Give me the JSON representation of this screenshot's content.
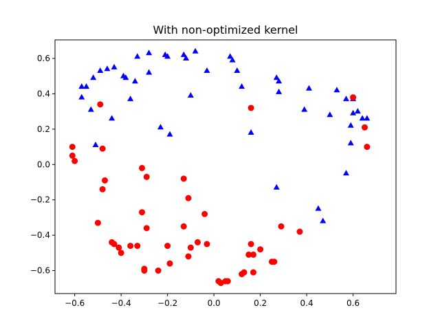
{
  "chart_data": {
    "type": "scatter",
    "title": "With non-optimized kernel",
    "xlabel": "",
    "ylabel": "",
    "xlim": [
      -0.685,
      0.785
    ],
    "ylim": [
      -0.73,
      0.705
    ],
    "xticks": [
      -0.6,
      -0.4,
      -0.2,
      0.0,
      0.2,
      0.4,
      0.6
    ],
    "xtick_labels": [
      "−0.6",
      "−0.4",
      "−0.2",
      "0.0",
      "0.2",
      "0.4",
      "0.6"
    ],
    "yticks": [
      -0.6,
      -0.4,
      -0.2,
      0.0,
      0.2,
      0.4,
      0.6
    ],
    "ytick_labels": [
      "−0.6",
      "−0.4",
      "−0.2",
      "0.0",
      "0.2",
      "0.4",
      "0.6"
    ],
    "grid": false,
    "series": [
      {
        "marker": "triangle",
        "color": "#0000ff",
        "points": [
          [
            -0.57,
            0.44
          ],
          [
            -0.55,
            0.44
          ],
          [
            -0.57,
            0.38
          ],
          [
            -0.53,
            0.31
          ],
          [
            -0.52,
            0.49
          ],
          [
            -0.49,
            0.53
          ],
          [
            -0.46,
            0.54
          ],
          [
            -0.43,
            0.55
          ],
          [
            -0.51,
            0.11
          ],
          [
            -0.44,
            0.26
          ],
          [
            -0.39,
            0.5
          ],
          [
            -0.38,
            0.49
          ],
          [
            -0.36,
            0.37
          ],
          [
            -0.34,
            0.47
          ],
          [
            -0.33,
            0.61
          ],
          [
            -0.28,
            0.63
          ],
          [
            -0.28,
            0.52
          ],
          [
            -0.23,
            0.21
          ],
          [
            -0.21,
            0.62
          ],
          [
            -0.2,
            0.61
          ],
          [
            -0.19,
            0.17
          ],
          [
            -0.13,
            0.62
          ],
          [
            -0.12,
            0.6
          ],
          [
            -0.1,
            0.39
          ],
          [
            -0.08,
            0.64
          ],
          [
            -0.03,
            0.53
          ],
          [
            0.07,
            0.61
          ],
          [
            0.08,
            0.59
          ],
          [
            0.1,
            0.53
          ],
          [
            0.12,
            0.44
          ],
          [
            0.16,
            0.18
          ],
          [
            0.27,
            0.49
          ],
          [
            0.28,
            0.47
          ],
          [
            0.28,
            0.41
          ],
          [
            0.27,
            -0.13
          ],
          [
            0.39,
            0.31
          ],
          [
            0.41,
            0.43
          ],
          [
            0.45,
            -0.25
          ],
          [
            0.47,
            -0.32
          ],
          [
            0.5,
            0.28
          ],
          [
            0.53,
            0.42
          ],
          [
            0.57,
            0.37
          ],
          [
            0.57,
            -0.05
          ],
          [
            0.59,
            0.22
          ],
          [
            0.59,
            0.12
          ],
          [
            0.6,
            0.29
          ],
          [
            0.6,
            0.37
          ],
          [
            0.62,
            0.3
          ],
          [
            0.64,
            0.26
          ],
          [
            0.66,
            0.26
          ]
        ]
      },
      {
        "marker": "circle",
        "color": "#ff0000",
        "points": [
          [
            -0.61,
            0.1
          ],
          [
            -0.61,
            0.05
          ],
          [
            -0.6,
            0.02
          ],
          [
            -0.5,
            -0.33
          ],
          [
            -0.49,
            0.34
          ],
          [
            -0.48,
            0.09
          ],
          [
            -0.48,
            -0.14
          ],
          [
            -0.47,
            -0.09
          ],
          [
            -0.44,
            -0.44
          ],
          [
            -0.43,
            -0.45
          ],
          [
            -0.41,
            -0.47
          ],
          [
            -0.4,
            -0.5
          ],
          [
            -0.36,
            -0.46
          ],
          [
            -0.33,
            -0.46
          ],
          [
            -0.31,
            -0.02
          ],
          [
            -0.31,
            -0.27
          ],
          [
            -0.3,
            -0.59
          ],
          [
            -0.3,
            -0.6
          ],
          [
            -0.29,
            -0.07
          ],
          [
            -0.29,
            -0.36
          ],
          [
            -0.24,
            -0.6
          ],
          [
            -0.2,
            -0.46
          ],
          [
            -0.19,
            -0.56
          ],
          [
            -0.13,
            -0.08
          ],
          [
            -0.13,
            -0.35
          ],
          [
            -0.11,
            -0.19
          ],
          [
            -0.11,
            -0.52
          ],
          [
            -0.1,
            -0.47
          ],
          [
            -0.07,
            -0.44
          ],
          [
            -0.04,
            -0.28
          ],
          [
            -0.03,
            -0.45
          ],
          [
            0.02,
            -0.66
          ],
          [
            0.03,
            -0.67
          ],
          [
            0.05,
            -0.66
          ],
          [
            0.06,
            -0.66
          ],
          [
            0.12,
            -0.62
          ],
          [
            0.13,
            -0.61
          ],
          [
            0.15,
            -0.51
          ],
          [
            0.16,
            -0.45
          ],
          [
            0.17,
            -0.61
          ],
          [
            0.16,
            0.32
          ],
          [
            0.17,
            -0.51
          ],
          [
            0.2,
            -0.48
          ],
          [
            0.25,
            -0.55
          ],
          [
            0.26,
            -0.55
          ],
          [
            0.29,
            -0.35
          ],
          [
            0.37,
            -0.38
          ],
          [
            0.6,
            0.38
          ],
          [
            0.65,
            0.21
          ],
          [
            0.66,
            0.1
          ]
        ]
      }
    ]
  }
}
